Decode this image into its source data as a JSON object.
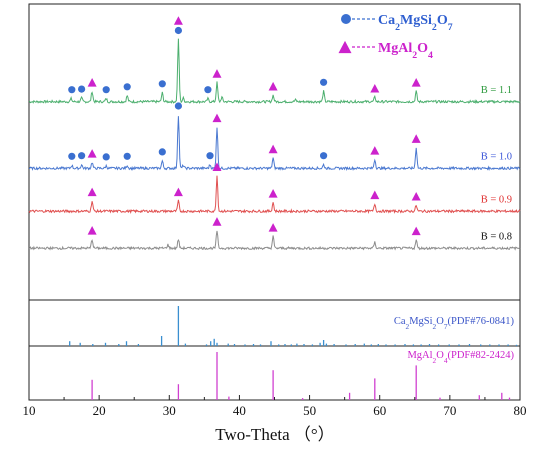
{
  "chart_data": {
    "type": "line",
    "xlabel": "Two-Theta （°）",
    "xlim": [
      10,
      80
    ],
    "x_ticks": [
      "10",
      "20",
      "30",
      "40",
      "50",
      "60",
      "70",
      "80"
    ],
    "legend": [
      {
        "label_main": "Ca",
        "sub1": "2",
        "mid": "MgSi",
        "sub2": "2",
        "end": "O",
        "sub3": "7",
        "marker": "circle",
        "marker_color": "#3a6fd0",
        "text_color": "#2f5fd0"
      },
      {
        "label_main": "MgAl",
        "sub1": "2",
        "mid": "O",
        "sub2": "4",
        "end": "",
        "sub3": "",
        "marker": "triangle",
        "marker_color": "#cc22cc",
        "text_color": "#cc22cc"
      }
    ],
    "series": [
      {
        "name": "B = 1.1",
        "color": "#4caf6e",
        "label_color": "#2e9a3e",
        "baseline": 0.67,
        "noise": 0.004,
        "peaks": [
          [
            16.0,
            0.01
          ],
          [
            17.5,
            0.012
          ],
          [
            19.0,
            0.035
          ],
          [
            21.0,
            0.01
          ],
          [
            24.0,
            0.02
          ],
          [
            29.0,
            0.03
          ],
          [
            31.3,
            0.21
          ],
          [
            32.0,
            0.012
          ],
          [
            35.5,
            0.01
          ],
          [
            36.8,
            0.065
          ],
          [
            37.5,
            0.015
          ],
          [
            44.8,
            0.022
          ],
          [
            48.0,
            0.006
          ],
          [
            52.0,
            0.035
          ],
          [
            59.3,
            0.015
          ],
          [
            65.2,
            0.035
          ]
        ],
        "circles": [
          16.1,
          17.5,
          21.0,
          24.0,
          29.0,
          31.3,
          35.5,
          52.0
        ],
        "triangles": [
          19.0,
          31.3,
          36.8,
          44.8,
          59.3,
          65.2
        ]
      },
      {
        "name": "B = 1.0",
        "color": "#4a78d0",
        "label_color": "#3a55d8",
        "baseline": 0.445,
        "noise": 0.004,
        "peaks": [
          [
            16.1,
            0.01
          ],
          [
            17.5,
            0.012
          ],
          [
            19.0,
            0.02
          ],
          [
            21.0,
            0.008
          ],
          [
            24.0,
            0.01
          ],
          [
            29.0,
            0.025
          ],
          [
            31.3,
            0.18
          ],
          [
            32.0,
            0.01
          ],
          [
            35.8,
            0.012
          ],
          [
            36.8,
            0.14
          ],
          [
            44.8,
            0.035
          ],
          [
            52.0,
            0.012
          ],
          [
            59.3,
            0.03
          ],
          [
            65.2,
            0.07
          ]
        ],
        "circles": [
          16.1,
          17.5,
          21.0,
          24.0,
          29.0,
          31.3,
          35.8,
          52.0
        ],
        "triangles": [
          19.0,
          36.8,
          44.8,
          59.3,
          65.2
        ]
      },
      {
        "name": "B = 0.9",
        "color": "#e05050",
        "label_color": "#e03030",
        "baseline": 0.3,
        "noise": 0.004,
        "peaks": [
          [
            19.0,
            0.035
          ],
          [
            31.3,
            0.035
          ],
          [
            36.8,
            0.12
          ],
          [
            44.8,
            0.03
          ],
          [
            59.3,
            0.025
          ],
          [
            65.2,
            0.02
          ]
        ],
        "circles": [],
        "triangles": [
          19.0,
          31.3,
          36.8,
          44.8,
          59.3,
          65.2
        ]
      },
      {
        "name": "B = 0.8",
        "color": "#8c8c8c",
        "label_color": "#111111",
        "baseline": 0.175,
        "noise": 0.004,
        "peaks": [
          [
            19.0,
            0.03
          ],
          [
            29.8,
            0.012
          ],
          [
            31.3,
            0.03
          ],
          [
            36.8,
            0.06
          ],
          [
            44.8,
            0.04
          ],
          [
            59.3,
            0.02
          ],
          [
            65.2,
            0.028
          ]
        ],
        "circles": [],
        "triangles": [
          19.0,
          36.8,
          44.8,
          65.2
        ]
      }
    ],
    "reference_patterns": [
      {
        "label_main": "Ca",
        "sub1": "2",
        "mid": "MgSi",
        "sub2": "2",
        "end": "O",
        "sub3": "7",
        "pdf": "(PDF#76-0841)",
        "label_color": "#3a55c8",
        "pdf_color": "#3a55c8",
        "color": "#3a8fd0",
        "lines": [
          [
            15.8,
            0.12
          ],
          [
            17.3,
            0.08
          ],
          [
            19.1,
            0.05
          ],
          [
            20.9,
            0.08
          ],
          [
            22.8,
            0.05
          ],
          [
            23.9,
            0.12
          ],
          [
            25.6,
            0.05
          ],
          [
            28.9,
            0.25
          ],
          [
            31.3,
            1.0
          ],
          [
            32.3,
            0.06
          ],
          [
            35.3,
            0.04
          ],
          [
            35.9,
            0.12
          ],
          [
            36.4,
            0.18
          ],
          [
            36.8,
            0.08
          ],
          [
            38.4,
            0.06
          ],
          [
            39.3,
            0.05
          ],
          [
            40.8,
            0.04
          ],
          [
            42.0,
            0.05
          ],
          [
            43.0,
            0.04
          ],
          [
            44.5,
            0.12
          ],
          [
            45.6,
            0.04
          ],
          [
            46.5,
            0.05
          ],
          [
            47.4,
            0.04
          ],
          [
            48.2,
            0.06
          ],
          [
            49.2,
            0.05
          ],
          [
            50.4,
            0.04
          ],
          [
            51.5,
            0.08
          ],
          [
            52.0,
            0.15
          ],
          [
            52.4,
            0.06
          ],
          [
            53.5,
            0.05
          ],
          [
            55.2,
            0.04
          ],
          [
            56.5,
            0.05
          ],
          [
            57.8,
            0.06
          ],
          [
            58.8,
            0.04
          ],
          [
            59.8,
            0.05
          ],
          [
            60.9,
            0.04
          ],
          [
            62.2,
            0.04
          ],
          [
            63.6,
            0.05
          ],
          [
            64.8,
            0.04
          ],
          [
            65.9,
            0.04
          ],
          [
            67.1,
            0.05
          ],
          [
            68.4,
            0.04
          ],
          [
            69.9,
            0.04
          ],
          [
            71.3,
            0.04
          ],
          [
            72.8,
            0.05
          ],
          [
            74.4,
            0.04
          ],
          [
            75.7,
            0.04
          ],
          [
            77.0,
            0.04
          ],
          [
            78.3,
            0.04
          ],
          [
            79.5,
            0.03
          ]
        ]
      },
      {
        "label_main": "MgAl",
        "sub1": "2",
        "mid": "O",
        "sub2": "4",
        "end": "",
        "sub3": "",
        "pdf": "(PDF#82-2424)",
        "label_color": "#cc22cc",
        "pdf_color": "#cc22cc",
        "color": "#d040d0",
        "lines": [
          [
            19.0,
            0.42
          ],
          [
            31.3,
            0.33
          ],
          [
            36.8,
            1.0
          ],
          [
            38.5,
            0.07
          ],
          [
            44.8,
            0.62
          ],
          [
            49.0,
            0.04
          ],
          [
            55.7,
            0.15
          ],
          [
            59.3,
            0.45
          ],
          [
            65.2,
            0.72
          ],
          [
            68.6,
            0.05
          ],
          [
            74.2,
            0.1
          ],
          [
            77.4,
            0.15
          ],
          [
            78.5,
            0.05
          ]
        ]
      }
    ]
  }
}
